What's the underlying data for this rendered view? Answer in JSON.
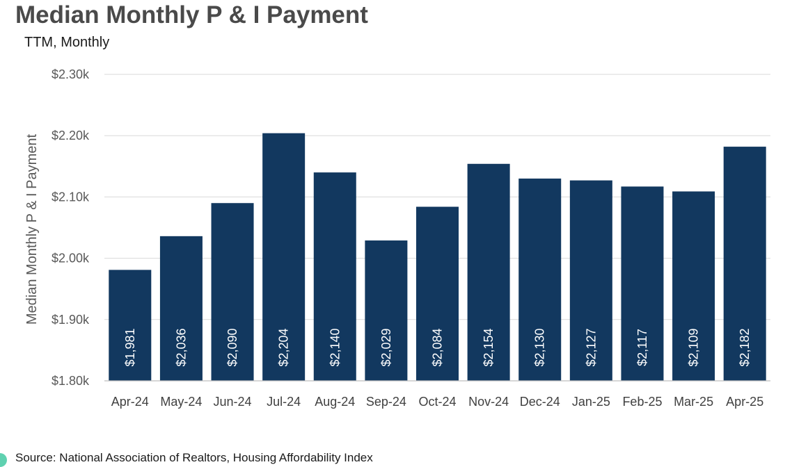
{
  "header": {
    "title": "Median Monthly P & I Payment",
    "subtitle": "TTM, Monthly"
  },
  "footer": {
    "source": "Source: National Association of Realtors, Housing Affordability Index"
  },
  "chart_data": {
    "type": "bar",
    "title": "Median Monthly P & I Payment",
    "subtitle": "TTM, Monthly",
    "ylabel": "Median Monthly P & I Payment",
    "xlabel": "",
    "ylim": [
      1800,
      2300
    ],
    "yticks": [
      1800,
      1900,
      2000,
      2100,
      2200,
      2300
    ],
    "ytick_labels": [
      "$1.80k",
      "$1.90k",
      "$2.00k",
      "$2.10k",
      "$2.20k",
      "$2.30k"
    ],
    "grid": true,
    "legend": "none",
    "bar_color": "#12385f",
    "categories": [
      "Apr-24",
      "May-24",
      "Jun-24",
      "Jul-24",
      "Aug-24",
      "Sep-24",
      "Oct-24",
      "Nov-24",
      "Dec-24",
      "Jan-25",
      "Feb-25",
      "Mar-25",
      "Apr-25"
    ],
    "values": [
      1981,
      2036,
      2090,
      2204,
      2140,
      2029,
      2084,
      2154,
      2130,
      2127,
      2117,
      2109,
      2182
    ],
    "data_labels": [
      "$1,981",
      "$2,036",
      "$2,090",
      "$2,204",
      "$2,140",
      "$2,029",
      "$2,084",
      "$2,154",
      "$2,130",
      "$2,127",
      "$2,117",
      "$2,109",
      "$2,182"
    ]
  }
}
